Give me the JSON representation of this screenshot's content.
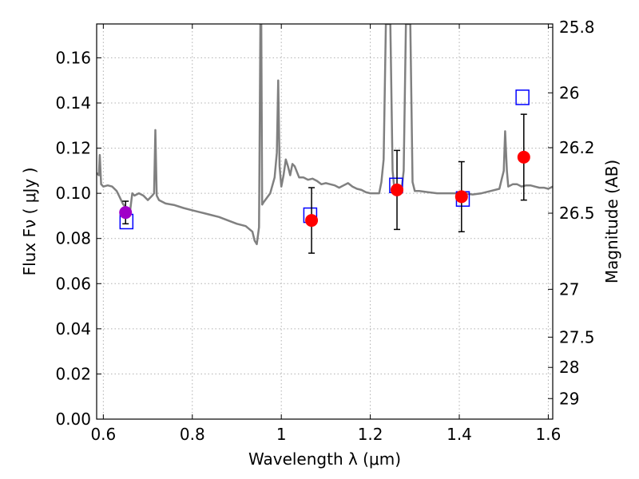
{
  "chart_data": {
    "type": "scatter",
    "xlabel": "Wavelength  λ (μm)",
    "ylabel": "Flux  Fν  ( μJy )",
    "y2label": "Magnitude (AB)",
    "xlim": [
      0.585,
      1.61
    ],
    "ylim": [
      0.0,
      0.175
    ],
    "grid": true,
    "x_ticks": [
      0.6,
      0.8,
      1.0,
      1.2,
      1.4,
      1.6
    ],
    "x_tick_labels": [
      "0.6",
      "0.8",
      "1",
      "1.2",
      "1.4",
      "1.6"
    ],
    "y_ticks": [
      0.0,
      0.02,
      0.04,
      0.06,
      0.08,
      0.1,
      0.12,
      0.14,
      0.16
    ],
    "y_tick_labels": [
      "0.00",
      "0.02",
      "0.04",
      "0.06",
      "0.08",
      "0.10",
      "0.12",
      "0.14",
      "0.16"
    ],
    "mag_ticks": [
      {
        "label": "25.8",
        "flux": 0.1735
      },
      {
        "label": "26",
        "flux": 0.1445
      },
      {
        "label": "26.2",
        "flux": 0.1202
      },
      {
        "label": "26.5",
        "flux": 0.0912
      },
      {
        "label": "27",
        "flux": 0.0575
      },
      {
        "label": "27.5",
        "flux": 0.0363
      },
      {
        "label": "28",
        "flux": 0.0229
      },
      {
        "label": "29",
        "flux": 0.0091
      }
    ],
    "colors": {
      "model": "#808080",
      "photometry": "#ff0000",
      "photometry_first": "#a000c8",
      "synthetic": "#0000ff",
      "errorbar": "#000000",
      "grid": "#b0b0b0"
    },
    "series": [
      {
        "kind": "model_spectrum",
        "points": [
          [
            0.585,
            0.109
          ],
          [
            0.59,
            0.108
          ],
          [
            0.592,
            0.117
          ],
          [
            0.595,
            0.104
          ],
          [
            0.6,
            0.103
          ],
          [
            0.61,
            0.1035
          ],
          [
            0.62,
            0.103
          ],
          [
            0.63,
            0.101
          ],
          [
            0.635,
            0.099
          ],
          [
            0.64,
            0.097
          ],
          [
            0.645,
            0.095
          ],
          [
            0.65,
            0.094
          ],
          [
            0.655,
            0.093
          ],
          [
            0.66,
            0.092
          ],
          [
            0.665,
            0.1
          ],
          [
            0.67,
            0.099
          ],
          [
            0.68,
            0.1
          ],
          [
            0.69,
            0.099
          ],
          [
            0.7,
            0.097
          ],
          [
            0.71,
            0.099
          ],
          [
            0.714,
            0.1
          ],
          [
            0.717,
            0.128
          ],
          [
            0.72,
            0.099
          ],
          [
            0.725,
            0.097
          ],
          [
            0.74,
            0.0955
          ],
          [
            0.76,
            0.0948
          ],
          [
            0.78,
            0.0935
          ],
          [
            0.8,
            0.0925
          ],
          [
            0.82,
            0.0915
          ],
          [
            0.84,
            0.0905
          ],
          [
            0.86,
            0.0895
          ],
          [
            0.88,
            0.088
          ],
          [
            0.9,
            0.0865
          ],
          [
            0.92,
            0.0855
          ],
          [
            0.935,
            0.083
          ],
          [
            0.94,
            0.079
          ],
          [
            0.945,
            0.0775
          ],
          [
            0.95,
            0.085
          ],
          [
            0.953,
            0.175
          ],
          [
            0.955,
            0.175
          ],
          [
            0.957,
            0.095
          ],
          [
            0.96,
            0.096
          ],
          [
            0.975,
            0.1
          ],
          [
            0.985,
            0.107
          ],
          [
            0.99,
            0.118
          ],
          [
            0.993,
            0.15
          ],
          [
            0.996,
            0.112
          ],
          [
            1.0,
            0.103
          ],
          [
            1.005,
            0.108
          ],
          [
            1.01,
            0.115
          ],
          [
            1.015,
            0.112
          ],
          [
            1.02,
            0.108
          ],
          [
            1.025,
            0.113
          ],
          [
            1.03,
            0.112
          ],
          [
            1.04,
            0.107
          ],
          [
            1.05,
            0.107
          ],
          [
            1.06,
            0.106
          ],
          [
            1.07,
            0.1065
          ],
          [
            1.08,
            0.1055
          ],
          [
            1.09,
            0.104
          ],
          [
            1.1,
            0.1045
          ],
          [
            1.11,
            0.104
          ],
          [
            1.12,
            0.1035
          ],
          [
            1.13,
            0.1025
          ],
          [
            1.14,
            0.1035
          ],
          [
            1.15,
            0.1045
          ],
          [
            1.16,
            0.103
          ],
          [
            1.17,
            0.102
          ],
          [
            1.18,
            0.1015
          ],
          [
            1.19,
            0.1005
          ],
          [
            1.2,
            0.1
          ],
          [
            1.21,
            0.1
          ],
          [
            1.22,
            0.1
          ],
          [
            1.225,
            0.105
          ],
          [
            1.23,
            0.115
          ],
          [
            1.235,
            0.175
          ],
          [
            1.245,
            0.175
          ],
          [
            1.25,
            0.11
          ],
          [
            1.255,
            0.1
          ],
          [
            1.26,
            0.102
          ],
          [
            1.265,
            0.1
          ],
          [
            1.27,
            0.101
          ],
          [
            1.275,
            0.11
          ],
          [
            1.28,
            0.175
          ],
          [
            1.29,
            0.175
          ],
          [
            1.295,
            0.105
          ],
          [
            1.3,
            0.101
          ],
          [
            1.31,
            0.101
          ],
          [
            1.33,
            0.1005
          ],
          [
            1.35,
            0.1
          ],
          [
            1.37,
            0.1
          ],
          [
            1.39,
            0.1
          ],
          [
            1.41,
            0.1
          ],
          [
            1.43,
            0.0995
          ],
          [
            1.45,
            0.1
          ],
          [
            1.47,
            0.101
          ],
          [
            1.49,
            0.102
          ],
          [
            1.495,
            0.106
          ],
          [
            1.5,
            0.11
          ],
          [
            1.503,
            0.1275
          ],
          [
            1.507,
            0.11
          ],
          [
            1.51,
            0.103
          ],
          [
            1.52,
            0.104
          ],
          [
            1.53,
            0.104
          ],
          [
            1.54,
            0.103
          ],
          [
            1.55,
            0.1035
          ],
          [
            1.56,
            0.1035
          ],
          [
            1.57,
            0.103
          ],
          [
            1.58,
            0.1025
          ],
          [
            1.59,
            0.1025
          ],
          [
            1.6,
            0.102
          ],
          [
            1.61,
            0.103
          ]
        ]
      },
      {
        "kind": "photometry",
        "points": [
          {
            "x": 0.65,
            "y": 0.0915,
            "err": 0.005
          },
          {
            "x": 1.068,
            "y": 0.088,
            "err": 0.0145
          },
          {
            "x": 1.26,
            "y": 0.1015,
            "err": 0.0175
          },
          {
            "x": 1.405,
            "y": 0.0985,
            "err": 0.0155
          },
          {
            "x": 1.545,
            "y": 0.116,
            "err": 0.019
          }
        ]
      },
      {
        "kind": "synthetic_photometry",
        "points": [
          {
            "x": 0.652,
            "y": 0.0875
          },
          {
            "x": 1.065,
            "y": 0.0903
          },
          {
            "x": 1.258,
            "y": 0.1035
          },
          {
            "x": 1.408,
            "y": 0.0975
          },
          {
            "x": 1.542,
            "y": 0.1425
          }
        ]
      }
    ]
  }
}
